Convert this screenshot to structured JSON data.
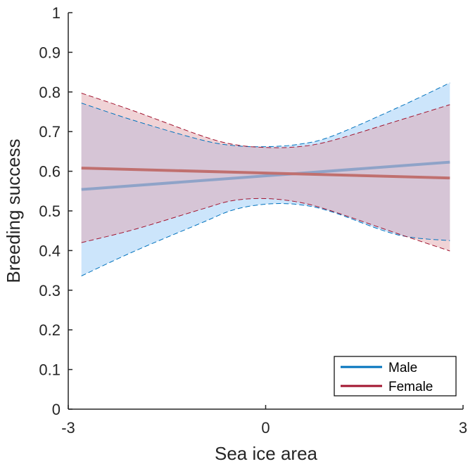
{
  "chart_data": {
    "type": "line",
    "title": "",
    "xlabel": "Sea ice area",
    "ylabel": "Breeding success",
    "xlim": [
      -3,
      3
    ],
    "ylim": [
      0,
      1
    ],
    "x_ticks": [
      -3,
      0,
      3
    ],
    "x_tick_labels": [
      "-3",
      "0",
      "3"
    ],
    "y_ticks": [
      0,
      0.1,
      0.2,
      0.3,
      0.4,
      0.5,
      0.6,
      0.7,
      0.8,
      0.9,
      1
    ],
    "y_tick_labels": [
      "0",
      "0.1",
      "0.2",
      "0.3",
      "0.4",
      "0.5",
      "0.6",
      "0.7",
      "0.8",
      "0.9",
      "1"
    ],
    "grid": false,
    "legend_position": "bottom-right",
    "series": [
      {
        "name": "Male",
        "color": "#0072BD",
        "line_color": "#8fa3c8",
        "fill_color": "#cce5fb",
        "x": [
          -2.8,
          2.8
        ],
        "y": [
          0.554,
          0.623
        ],
        "ci_x": [
          -2.8,
          -2.0,
          -1.0,
          -0.5,
          0.0,
          0.5,
          1.0,
          2.0,
          2.8
        ],
        "ci_upper": [
          0.772,
          0.728,
          0.68,
          0.665,
          0.662,
          0.668,
          0.688,
          0.76,
          0.823
        ],
        "ci_lower": [
          0.336,
          0.398,
          0.468,
          0.502,
          0.517,
          0.516,
          0.498,
          0.44,
          0.425
        ]
      },
      {
        "name": "Female",
        "color": "#A2142F",
        "line_color": "#c0706f",
        "fill_color": "#f0d3d6",
        "x": [
          -2.8,
          2.8
        ],
        "y": [
          0.608,
          0.583
        ],
        "ci_x": [
          -2.8,
          -2.0,
          -1.0,
          -0.5,
          0.0,
          0.5,
          1.0,
          2.0,
          2.8
        ],
        "ci_upper": [
          0.797,
          0.752,
          0.691,
          0.668,
          0.66,
          0.662,
          0.677,
          0.727,
          0.768
        ],
        "ci_lower": [
          0.42,
          0.453,
          0.503,
          0.526,
          0.531,
          0.522,
          0.5,
          0.443,
          0.399
        ]
      }
    ],
    "overlap_color": "#d6c5d6"
  }
}
